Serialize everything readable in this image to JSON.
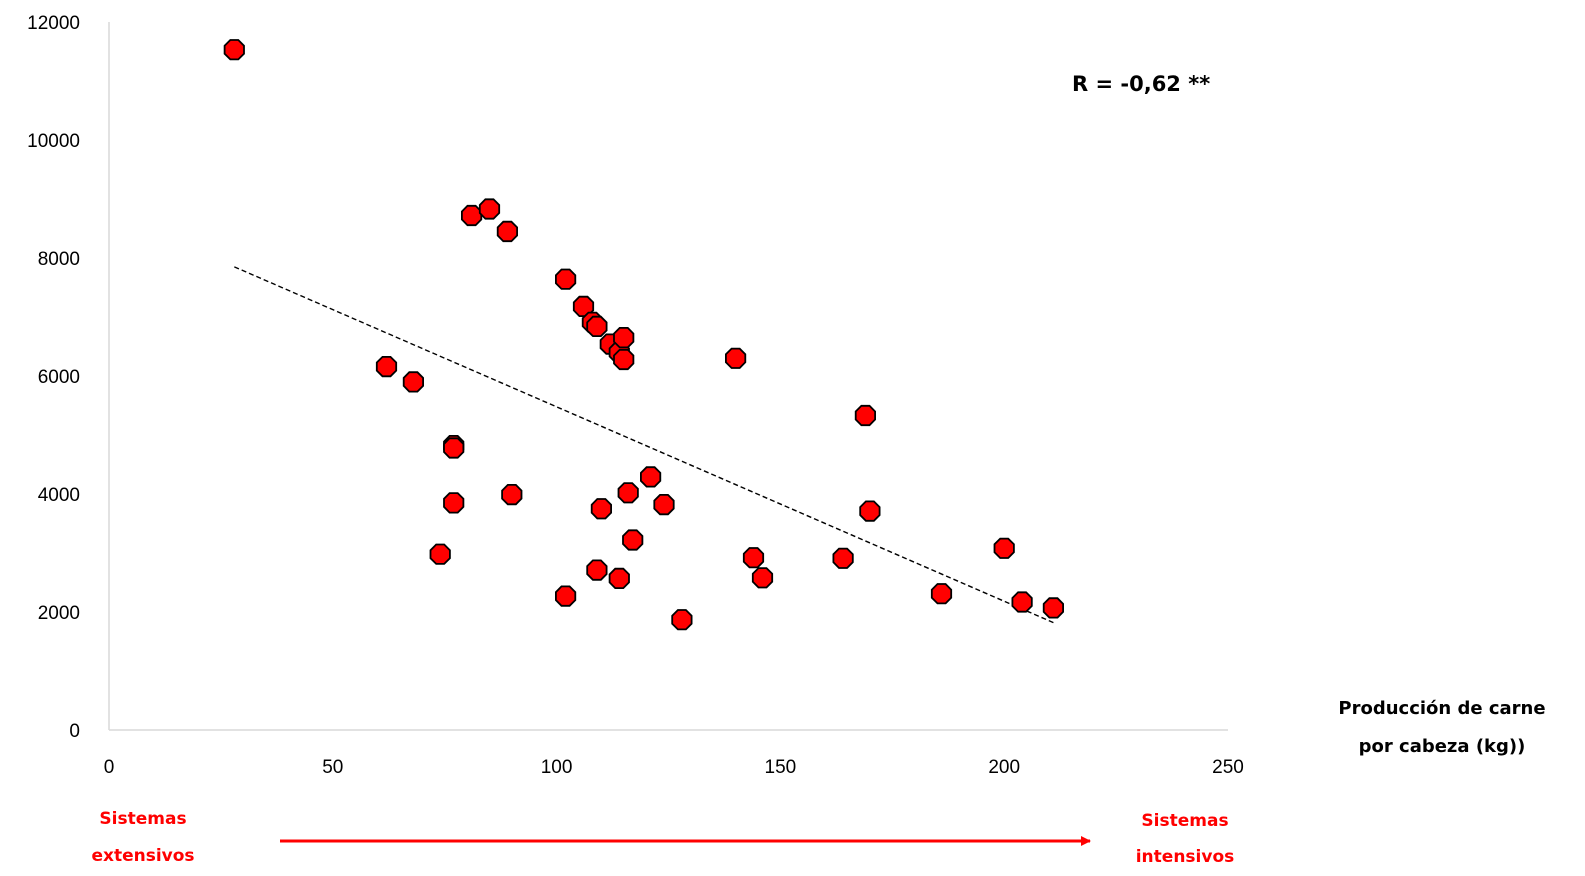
{
  "chart_data": {
    "type": "scatter",
    "title": "",
    "xlabel_lines": [
      "Producción de carne",
      "por cabeza (kg))"
    ],
    "ylabel": "",
    "xlim": [
      0,
      250
    ],
    "ylim": [
      0,
      12000
    ],
    "x_ticks": [
      "0",
      "50",
      "100",
      "150",
      "200",
      "250"
    ],
    "y_ticks": [
      "0",
      "2000",
      "4000",
      "6000",
      "8000",
      "10000",
      "12000"
    ],
    "grid": false,
    "annotation": "R = -0,62 **",
    "arrow_left_lines": [
      "Sistemas",
      "extensivos"
    ],
    "arrow_right_lines": [
      "Sistemas",
      "intensivos"
    ],
    "colors": {
      "marker_fill": "#ff0000",
      "marker_stroke": "#000000",
      "arrow": "#ff0000",
      "trendline": "#000000"
    },
    "trendline": {
      "style": "dashed",
      "x": [
        28,
        211
      ],
      "y": [
        7850,
        1820
      ]
    },
    "points": [
      {
        "x": 28,
        "y": 11530
      },
      {
        "x": 62,
        "y": 6160
      },
      {
        "x": 68,
        "y": 5900
      },
      {
        "x": 74,
        "y": 2980
      },
      {
        "x": 77,
        "y": 4820
      },
      {
        "x": 77,
        "y": 4780
      },
      {
        "x": 77,
        "y": 3850
      },
      {
        "x": 81,
        "y": 8720
      },
      {
        "x": 85,
        "y": 8830
      },
      {
        "x": 89,
        "y": 8450
      },
      {
        "x": 90,
        "y": 3990
      },
      {
        "x": 102,
        "y": 7640
      },
      {
        "x": 102,
        "y": 2270
      },
      {
        "x": 106,
        "y": 7180
      },
      {
        "x": 108,
        "y": 6910
      },
      {
        "x": 109,
        "y": 6840
      },
      {
        "x": 109,
        "y": 2710
      },
      {
        "x": 110,
        "y": 3750
      },
      {
        "x": 112,
        "y": 6540
      },
      {
        "x": 114,
        "y": 6400
      },
      {
        "x": 114,
        "y": 2570
      },
      {
        "x": 115,
        "y": 6650
      },
      {
        "x": 115,
        "y": 6280
      },
      {
        "x": 116,
        "y": 4020
      },
      {
        "x": 117,
        "y": 3220
      },
      {
        "x": 121,
        "y": 4290
      },
      {
        "x": 124,
        "y": 3820
      },
      {
        "x": 128,
        "y": 1870
      },
      {
        "x": 140,
        "y": 6300
      },
      {
        "x": 144,
        "y": 2920
      },
      {
        "x": 146,
        "y": 2580
      },
      {
        "x": 164,
        "y": 2910
      },
      {
        "x": 169,
        "y": 5330
      },
      {
        "x": 170,
        "y": 3710
      },
      {
        "x": 186,
        "y": 2310
      },
      {
        "x": 200,
        "y": 3080
      },
      {
        "x": 204,
        "y": 2170
      },
      {
        "x": 211,
        "y": 2070
      }
    ]
  }
}
